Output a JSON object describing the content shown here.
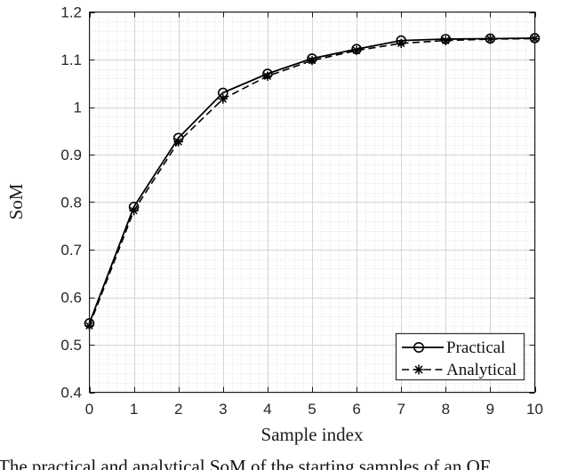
{
  "chart_data": {
    "type": "line",
    "title": "",
    "xlabel": "Sample index",
    "ylabel": "SoM",
    "xlim": [
      0,
      10
    ],
    "ylim": [
      0.4,
      1.2
    ],
    "x": [
      0,
      1,
      2,
      3,
      4,
      5,
      6,
      7,
      8,
      9,
      10
    ],
    "series": [
      {
        "name": "Practical",
        "marker": "circle",
        "line_style": "solid",
        "color": "#000000",
        "values": [
          0.545,
          0.79,
          0.935,
          1.03,
          1.07,
          1.102,
          1.122,
          1.14,
          1.143,
          1.144,
          1.145
        ]
      },
      {
        "name": "Analytical",
        "marker": "asterisk",
        "line_style": "dashed",
        "color": "#000000",
        "values": [
          0.54,
          0.782,
          0.927,
          1.017,
          1.065,
          1.098,
          1.119,
          1.134,
          1.14,
          1.143,
          1.144
        ]
      }
    ],
    "xticks": {
      "values": [
        0,
        1,
        2,
        3,
        4,
        5,
        6,
        7,
        8,
        9,
        10
      ],
      "labels": [
        "0",
        "1",
        "2",
        "3",
        "4",
        "5",
        "6",
        "7",
        "8",
        "9",
        "10"
      ]
    },
    "yticks": {
      "values": [
        0.4,
        0.5,
        0.6,
        0.7,
        0.8,
        0.9,
        1.0,
        1.1,
        1.2
      ],
      "labels": [
        "0.4",
        "0.5",
        "0.6",
        "0.7",
        "0.8",
        "0.9",
        "1",
        "1.1",
        "1.2"
      ]
    },
    "grid": {
      "major": true,
      "minor": true,
      "major_color": "#d4d4d4",
      "minor_color": "#dfdfdf",
      "x_minor_step": 0.2,
      "y_minor_step": 0.02
    },
    "legend": {
      "position": "bottom-right",
      "entries": [
        "Practical",
        "Analytical"
      ]
    },
    "axis_color": "#1a1a1a",
    "tick_label_color": "#262626"
  },
  "caption": {
    "text": "The practical and analytical SoM of the starting samples of an OF"
  }
}
